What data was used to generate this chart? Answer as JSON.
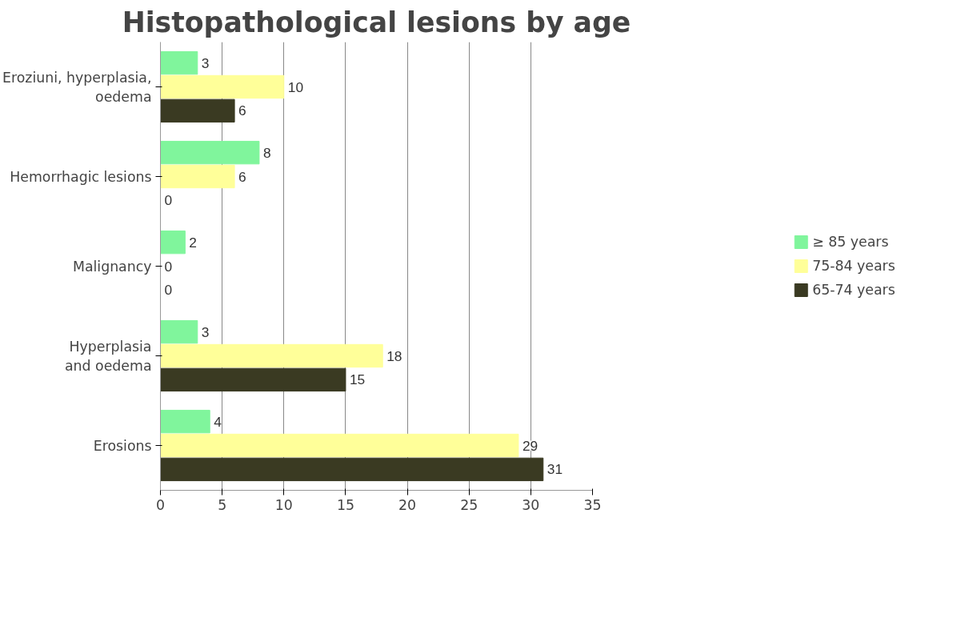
{
  "chart_data": {
    "type": "bar",
    "orientation": "horizontal",
    "title": "Histopathological lesions by age",
    "categories": [
      "Eroziuni, hyperplasia,\noedema",
      "Hemorrhagic lesions",
      "Malignancy",
      "Hyperplasia\nand oedema",
      "Erosions"
    ],
    "series": [
      {
        "name": "≥ 85 years",
        "color": "#80f59c",
        "values": [
          3,
          8,
          2,
          3,
          4
        ]
      },
      {
        "name": "75-84 years",
        "color": "#ffff99",
        "values": [
          10,
          6,
          0,
          18,
          29
        ]
      },
      {
        "name": "65-74 years",
        "color": "#3a3a22",
        "values": [
          6,
          0,
          0,
          15,
          31
        ]
      }
    ],
    "xlim": [
      0,
      35
    ],
    "xticks": [
      0,
      5,
      10,
      15,
      20,
      25,
      30,
      35
    ],
    "grid": "x",
    "legend": "right",
    "data_labels": true
  }
}
